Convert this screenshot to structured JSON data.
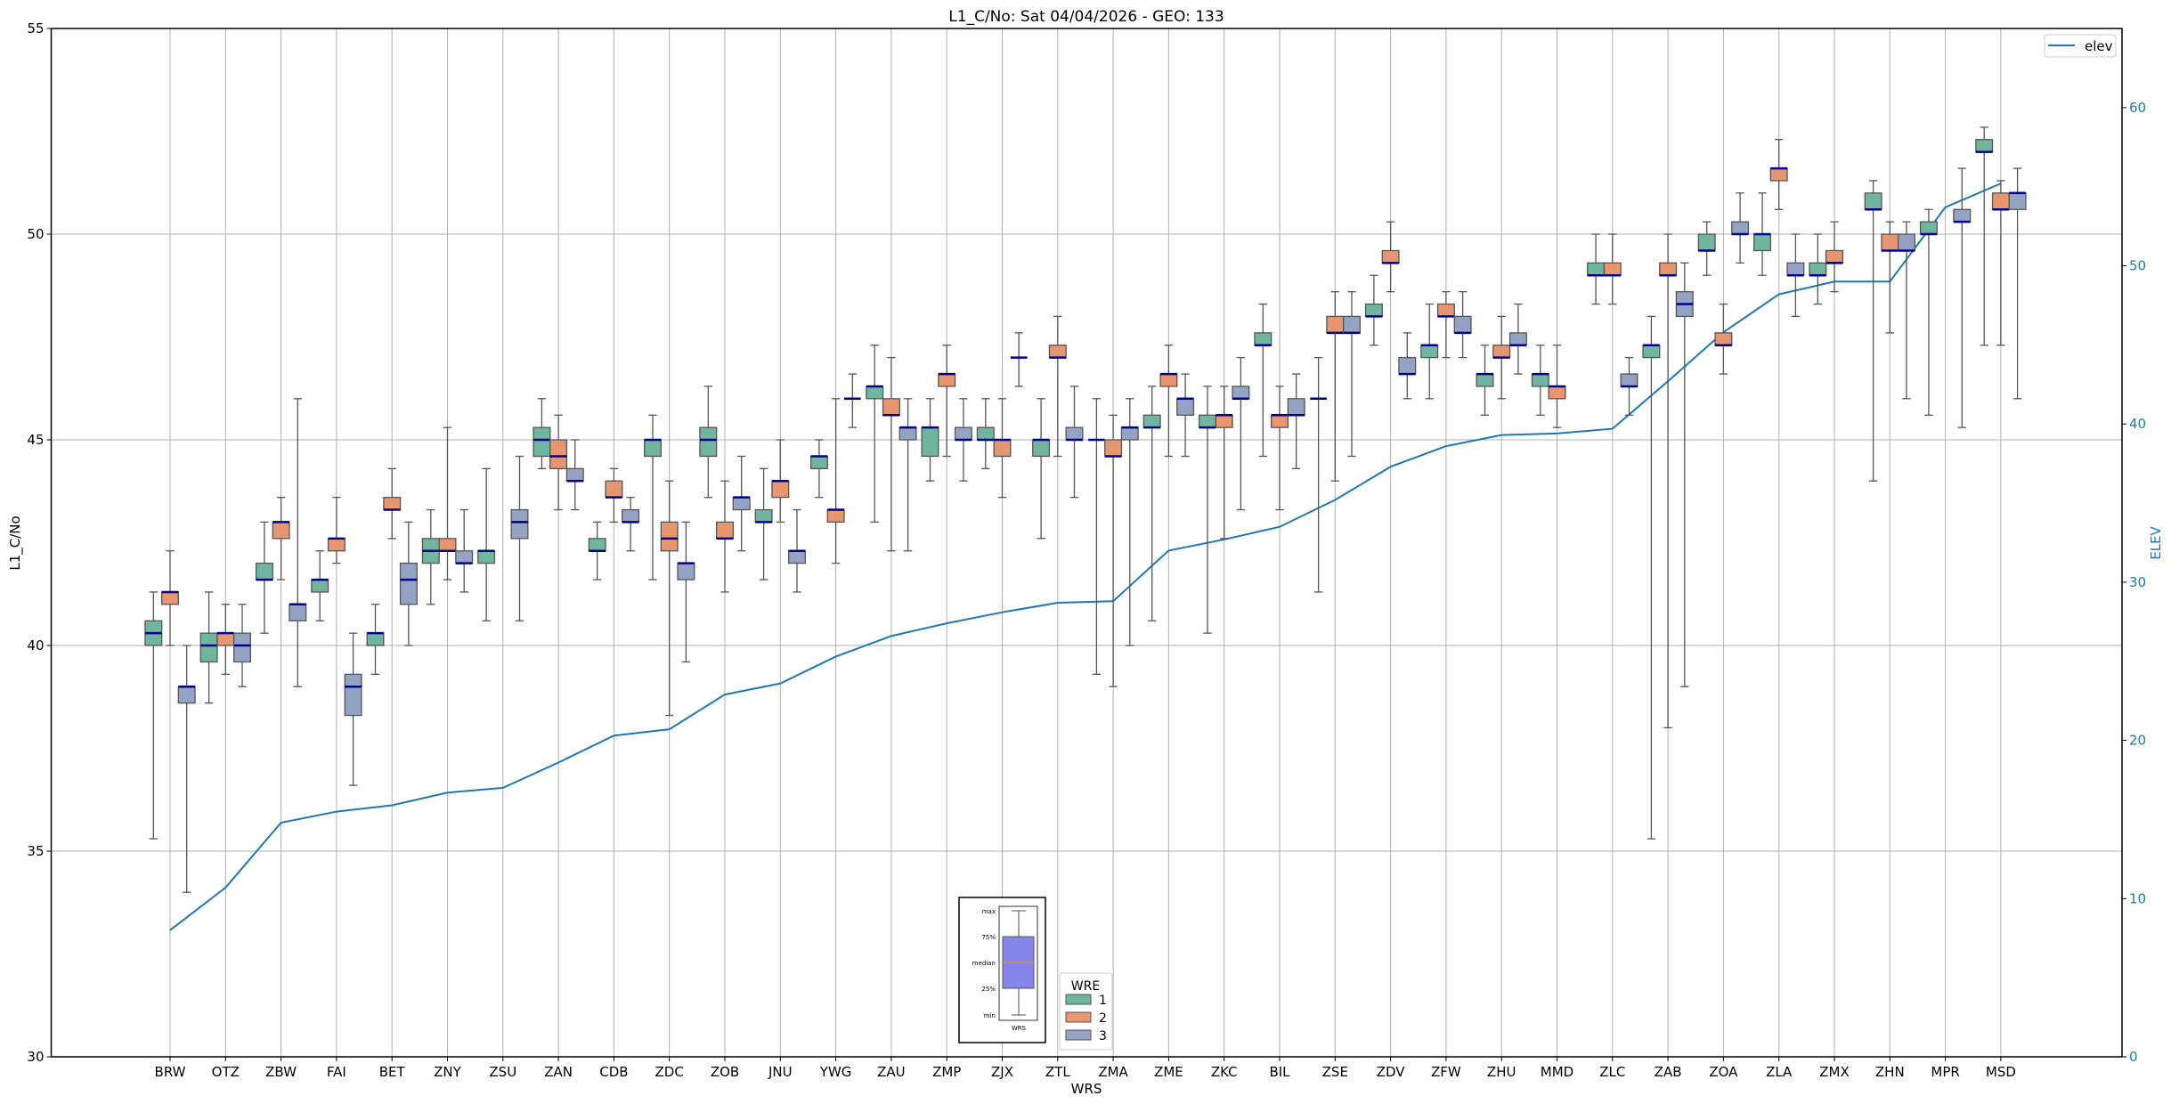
{
  "chart_data": {
    "type": "box",
    "title": "L1_C/No: Sat 04/04/2026 - GEO: 133",
    "xlabel": "WRS",
    "ylabel": "L1_C/No",
    "y2label": "ELEV",
    "ylim": [
      30,
      55
    ],
    "y2lim": [
      0,
      65
    ],
    "yticks": [
      "30",
      "35",
      "40",
      "45",
      "50",
      "55"
    ],
    "y2ticks": [
      "0",
      "10",
      "20",
      "30",
      "40",
      "50",
      "60"
    ],
    "grid": true,
    "categories": [
      "BRW",
      "OTZ",
      "ZBW",
      "FAI",
      "BET",
      "ZNY",
      "ZSU",
      "ZAN",
      "CDB",
      "ZDC",
      "ZOB",
      "JNU",
      "YWG",
      "ZAU",
      "ZMP",
      "ZJX",
      "ZTL",
      "ZMA",
      "ZME",
      "ZKC",
      "BIL",
      "ZSE",
      "ZDV",
      "ZFW",
      "ZHU",
      "MMD",
      "ZLC",
      "ZAB",
      "ZOA",
      "ZLA",
      "ZMX",
      "ZHN",
      "MPR",
      "MSD"
    ],
    "box_fields": [
      "min",
      "q1",
      "median",
      "q3",
      "max"
    ],
    "legend_title": "WRE",
    "legend_placement": "bottom-center",
    "series": [
      {
        "name": "1",
        "color": "#70b5a0",
        "boxes": [
          [
            35.3,
            40.0,
            40.3,
            40.6,
            41.3
          ],
          [
            38.6,
            39.6,
            40.0,
            40.3,
            41.3
          ],
          [
            40.3,
            41.6,
            41.6,
            42.0,
            43.0
          ],
          [
            40.6,
            41.3,
            41.6,
            41.6,
            42.3
          ],
          [
            39.3,
            40.0,
            40.3,
            40.3,
            41.0
          ],
          [
            41.0,
            42.0,
            42.3,
            42.6,
            43.3
          ],
          [
            40.6,
            42.0,
            42.3,
            42.3,
            44.3
          ],
          [
            44.3,
            44.6,
            45.0,
            45.3,
            46.0
          ],
          [
            41.6,
            42.3,
            42.3,
            42.6,
            43.0
          ],
          [
            41.6,
            44.6,
            45.0,
            45.0,
            45.6
          ],
          [
            43.6,
            44.6,
            45.0,
            45.3,
            46.3
          ],
          [
            41.6,
            43.0,
            43.0,
            43.3,
            44.3
          ],
          [
            43.6,
            44.3,
            44.6,
            44.6,
            45.0
          ],
          [
            43.0,
            46.0,
            46.3,
            46.3,
            47.3
          ],
          [
            44.0,
            44.6,
            45.3,
            45.3,
            46.0
          ],
          [
            44.3,
            45.0,
            45.0,
            45.3,
            46.0
          ],
          [
            42.6,
            44.6,
            45.0,
            45.0,
            46.0
          ],
          [
            39.3,
            45.0,
            45.0,
            45.0,
            46.0
          ],
          [
            40.6,
            45.3,
            45.3,
            45.6,
            46.3
          ],
          [
            40.3,
            45.3,
            45.3,
            45.6,
            46.3
          ],
          [
            44.6,
            47.3,
            47.3,
            47.6,
            48.3
          ],
          [
            41.3,
            46.0,
            46.0,
            46.0,
            47.0
          ],
          [
            47.3,
            48.0,
            48.0,
            48.3,
            49.0
          ],
          [
            46.0,
            47.0,
            47.3,
            47.3,
            48.3
          ],
          [
            45.6,
            46.3,
            46.6,
            46.6,
            47.3
          ],
          [
            45.6,
            46.3,
            46.6,
            46.6,
            47.3
          ],
          [
            48.3,
            49.0,
            49.0,
            49.3,
            50.0
          ],
          [
            35.3,
            47.0,
            47.3,
            47.3,
            48.0
          ],
          [
            49.0,
            49.6,
            49.6,
            50.0,
            50.3
          ],
          [
            49.0,
            49.6,
            50.0,
            50.0,
            51.0
          ],
          [
            48.3,
            49.0,
            49.0,
            49.3,
            50.0
          ],
          [
            44.0,
            50.6,
            50.6,
            51.0,
            51.3
          ],
          [
            45.6,
            50.0,
            50.0,
            50.3,
            50.6
          ],
          [
            47.3,
            52.0,
            52.0,
            52.3,
            52.6
          ]
        ]
      },
      {
        "name": "2",
        "color": "#e8966f",
        "boxes": [
          [
            40.0,
            41.0,
            41.3,
            41.3,
            42.3
          ],
          [
            39.3,
            40.0,
            40.3,
            40.3,
            41.0
          ],
          [
            41.6,
            42.6,
            43.0,
            43.0,
            43.6
          ],
          [
            42.0,
            42.3,
            42.6,
            42.6,
            43.6
          ],
          [
            42.6,
            43.3,
            43.3,
            43.6,
            44.3
          ],
          [
            41.6,
            42.3,
            42.3,
            42.6,
            45.3
          ],
          null,
          [
            43.3,
            44.3,
            44.6,
            45.0,
            45.6
          ],
          [
            43.0,
            43.6,
            43.6,
            44.0,
            44.3
          ],
          [
            38.3,
            42.3,
            42.6,
            43.0,
            44.0
          ],
          [
            41.3,
            42.6,
            42.6,
            43.0,
            44.0
          ],
          [
            43.0,
            43.6,
            44.0,
            44.0,
            45.0
          ],
          [
            42.0,
            43.0,
            43.3,
            43.3,
            46.0
          ],
          [
            42.3,
            45.6,
            45.6,
            46.0,
            47.0
          ],
          [
            44.6,
            46.3,
            46.6,
            46.6,
            47.3
          ],
          [
            43.6,
            44.6,
            45.0,
            45.0,
            46.0
          ],
          [
            44.6,
            47.0,
            47.0,
            47.3,
            48.0
          ],
          [
            39.0,
            44.6,
            44.6,
            45.0,
            45.6
          ],
          [
            44.6,
            46.3,
            46.6,
            46.6,
            47.3
          ],
          [
            42.6,
            45.3,
            45.6,
            45.6,
            46.3
          ],
          [
            43.3,
            45.3,
            45.6,
            45.6,
            46.3
          ],
          [
            44.0,
            47.6,
            47.6,
            48.0,
            48.6
          ],
          [
            48.6,
            49.3,
            49.3,
            49.6,
            50.3
          ],
          [
            47.0,
            48.0,
            48.0,
            48.3,
            48.6
          ],
          [
            46.0,
            47.0,
            47.0,
            47.3,
            48.0
          ],
          [
            45.3,
            46.0,
            46.3,
            46.3,
            47.3
          ],
          [
            48.3,
            49.0,
            49.0,
            49.3,
            50.0
          ],
          [
            38.0,
            49.0,
            49.0,
            49.3,
            50.0
          ],
          [
            46.6,
            47.3,
            47.3,
            47.6,
            48.3
          ],
          [
            50.6,
            51.3,
            51.6,
            51.6,
            52.3
          ],
          [
            48.6,
            49.3,
            49.3,
            49.6,
            50.3
          ],
          [
            47.6,
            49.6,
            49.6,
            50.0,
            50.3
          ],
          null,
          [
            47.3,
            50.6,
            50.6,
            51.0,
            51.3
          ]
        ]
      },
      {
        "name": "3",
        "color": "#94a3c4",
        "boxes": [
          [
            34.0,
            38.6,
            39.0,
            39.0,
            40.0
          ],
          [
            39.0,
            39.6,
            40.0,
            40.3,
            41.0
          ],
          [
            39.0,
            40.6,
            41.0,
            41.0,
            46.0
          ],
          [
            36.6,
            38.3,
            39.0,
            39.3,
            40.3
          ],
          [
            40.0,
            41.0,
            41.6,
            42.0,
            43.0
          ],
          [
            41.3,
            42.0,
            42.0,
            42.3,
            43.3
          ],
          [
            40.6,
            42.6,
            43.0,
            43.3,
            44.6
          ],
          [
            43.3,
            44.0,
            44.0,
            44.3,
            45.0
          ],
          [
            42.3,
            43.0,
            43.0,
            43.3,
            43.6
          ],
          [
            39.6,
            41.6,
            42.0,
            42.0,
            43.0
          ],
          [
            42.3,
            43.3,
            43.6,
            43.6,
            44.6
          ],
          [
            41.3,
            42.0,
            42.3,
            42.3,
            43.3
          ],
          [
            45.3,
            46.0,
            46.0,
            46.0,
            46.6
          ],
          [
            42.3,
            45.0,
            45.3,
            45.3,
            46.0
          ],
          [
            44.0,
            45.0,
            45.0,
            45.3,
            46.0
          ],
          [
            46.3,
            47.0,
            47.0,
            47.0,
            47.6
          ],
          [
            43.6,
            45.0,
            45.0,
            45.3,
            46.3
          ],
          [
            40.0,
            45.0,
            45.3,
            45.3,
            46.0
          ],
          [
            44.6,
            45.6,
            46.0,
            46.0,
            46.6
          ],
          [
            43.3,
            46.0,
            46.0,
            46.3,
            47.0
          ],
          [
            44.3,
            45.6,
            45.6,
            46.0,
            46.6
          ],
          [
            44.6,
            47.6,
            47.6,
            48.0,
            48.6
          ],
          [
            46.0,
            46.6,
            46.6,
            47.0,
            47.6
          ],
          [
            47.0,
            47.6,
            47.6,
            48.0,
            48.6
          ],
          [
            46.6,
            47.3,
            47.3,
            47.6,
            48.3
          ],
          null,
          [
            45.6,
            46.3,
            46.3,
            46.6,
            47.0
          ],
          [
            39.0,
            48.0,
            48.3,
            48.6,
            49.3
          ],
          [
            49.3,
            50.0,
            50.0,
            50.3,
            51.0
          ],
          [
            48.0,
            49.0,
            49.0,
            49.3,
            50.0
          ],
          null,
          [
            46.0,
            49.6,
            49.6,
            50.0,
            50.3
          ],
          [
            45.3,
            50.3,
            50.3,
            50.6,
            51.6
          ],
          [
            46.0,
            50.6,
            51.0,
            51.0,
            51.6
          ]
        ]
      }
    ],
    "line": {
      "name": "elev",
      "axis": "right",
      "color": "#1f77b4",
      "legend_placement": "top-right",
      "values": [
        8.0,
        10.7,
        14.8,
        15.5,
        15.9,
        16.7,
        17.0,
        18.6,
        20.3,
        20.7,
        22.9,
        23.6,
        25.3,
        26.6,
        27.4,
        28.1,
        28.7,
        28.8,
        32.0,
        32.7,
        33.5,
        35.2,
        37.3,
        38.6,
        39.3,
        39.4,
        39.7,
        42.7,
        45.8,
        48.2,
        49.0,
        49.0,
        53.7,
        55.2
      ]
    },
    "inset": {
      "labels": [
        "max",
        "75%",
        "median",
        "25%",
        "min"
      ],
      "xlabel": "WRS",
      "box_color": "#8585ea",
      "median_color": "#ff8c00"
    },
    "median_color": "#00008b"
  }
}
